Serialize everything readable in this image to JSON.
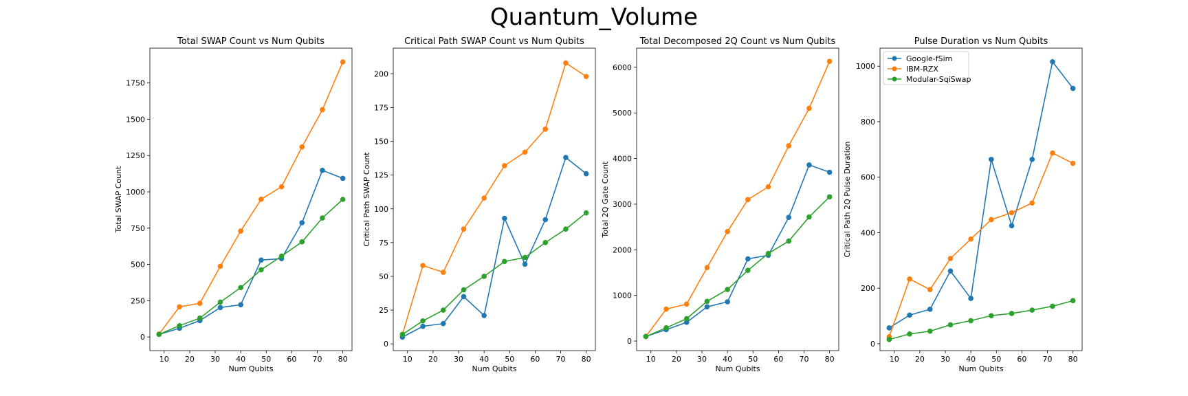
{
  "figure": {
    "title": "Quantum_Volume"
  },
  "legend": {
    "placement": "upper-left",
    "panel": 3
  },
  "chart_data": [
    {
      "type": "line",
      "title": "Total SWAP Count vs Num Qubits",
      "xlabel": "Num Qubits",
      "ylabel": "Total SWAP Count",
      "x": [
        8,
        16,
        24,
        32,
        40,
        48,
        56,
        64,
        72,
        80
      ],
      "xlim": [
        4.4,
        83.6
      ],
      "ylim": [
        -94,
        1990
      ],
      "xticks": [
        10,
        20,
        30,
        40,
        50,
        60,
        70,
        80
      ],
      "yticks": [
        0,
        250,
        500,
        750,
        1000,
        1250,
        1500,
        1750
      ],
      "series": [
        {
          "name": "Google-fSim",
          "color": "#1f77b4",
          "values": [
            18,
            60,
            113,
            203,
            222,
            530,
            540,
            787,
            1148,
            1093
          ]
        },
        {
          "name": "IBM-RZX",
          "color": "#ff7f0e",
          "values": [
            20,
            208,
            232,
            487,
            730,
            949,
            1035,
            1309,
            1566,
            1895
          ]
        },
        {
          "name": "Modular-SqiSwap",
          "color": "#2ca02c",
          "values": [
            18,
            78,
            130,
            240,
            340,
            463,
            557,
            655,
            820,
            948
          ]
        }
      ]
    },
    {
      "type": "line",
      "title": "Critical Path SWAP Count vs Num Qubits",
      "xlabel": "Num Qubits",
      "ylabel": "Critical Path SWAP Count",
      "x": [
        8,
        16,
        24,
        32,
        40,
        48,
        56,
        64,
        72,
        80
      ],
      "xlim": [
        4.4,
        83.6
      ],
      "ylim": [
        -5,
        219
      ],
      "xticks": [
        10,
        20,
        30,
        40,
        50,
        60,
        70,
        80
      ],
      "yticks": [
        0,
        25,
        50,
        75,
        100,
        125,
        150,
        175,
        200
      ],
      "series": [
        {
          "name": "Google-fSim",
          "color": "#1f77b4",
          "values": [
            5,
            13,
            15,
            35,
            21,
            93,
            59,
            92,
            138,
            126
          ]
        },
        {
          "name": "IBM-RZX",
          "color": "#ff7f0e",
          "values": [
            7,
            58,
            53,
            85,
            108,
            132,
            142,
            159,
            208,
            198
          ]
        },
        {
          "name": "Modular-SqiSwap",
          "color": "#2ca02c",
          "values": [
            7,
            17,
            25,
            40,
            50,
            61,
            64,
            75,
            85,
            97
          ]
        }
      ]
    },
    {
      "type": "line",
      "title": "Total Decomposed 2Q Count vs Num Qubits",
      "xlabel": "Num Qubits",
      "ylabel": "Total 2Q Gate Count",
      "x": [
        8,
        16,
        24,
        32,
        40,
        48,
        56,
        64,
        72,
        80
      ],
      "xlim": [
        4.4,
        83.6
      ],
      "ylim": [
        -210,
        6420
      ],
      "xticks": [
        10,
        20,
        30,
        40,
        50,
        60,
        70,
        80
      ],
      "yticks": [
        0,
        1000,
        2000,
        3000,
        4000,
        5000,
        6000
      ],
      "series": [
        {
          "name": "Google-fSim",
          "color": "#1f77b4",
          "values": [
            100,
            250,
            410,
            750,
            860,
            1800,
            1880,
            2710,
            3860,
            3700
          ]
        },
        {
          "name": "IBM-RZX",
          "color": "#ff7f0e",
          "values": [
            100,
            700,
            810,
            1610,
            2400,
            3100,
            3380,
            4280,
            5100,
            6130
          ]
        },
        {
          "name": "Modular-SqiSwap",
          "color": "#2ca02c",
          "values": [
            100,
            290,
            490,
            870,
            1130,
            1550,
            1920,
            2190,
            2720,
            3160
          ]
        }
      ]
    },
    {
      "type": "line",
      "title": "Pulse Duration vs Num Qubits",
      "xlabel": "Num Qubits",
      "ylabel": "Critical Path 2Q Pulse Duration",
      "x": [
        8,
        16,
        24,
        32,
        40,
        48,
        56,
        64,
        72,
        80
      ],
      "xlim": [
        4.4,
        83.6
      ],
      "ylim": [
        -25,
        1065
      ],
      "xticks": [
        10,
        20,
        30,
        40,
        50,
        60,
        70,
        80
      ],
      "yticks": [
        0,
        200,
        400,
        600,
        800,
        1000
      ],
      "series": [
        {
          "name": "Google-fSim",
          "color": "#1f77b4",
          "values": [
            57,
            103,
            124,
            262,
            163,
            664,
            425,
            664,
            1016,
            920
          ]
        },
        {
          "name": "IBM-RZX",
          "color": "#ff7f0e",
          "values": [
            25,
            233,
            195,
            307,
            377,
            447,
            472,
            507,
            687,
            650
          ]
        },
        {
          "name": "Modular-SqiSwap",
          "color": "#2ca02c",
          "values": [
            15,
            35,
            45,
            68,
            83,
            101,
            109,
            121,
            135,
            155
          ]
        }
      ]
    }
  ]
}
